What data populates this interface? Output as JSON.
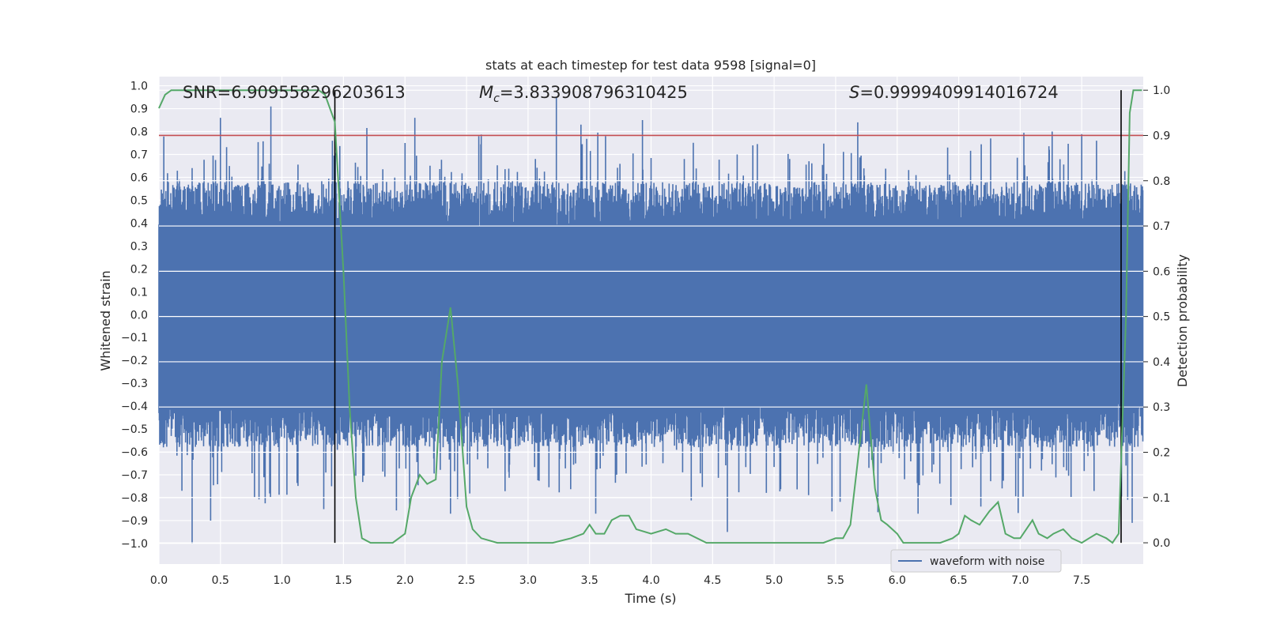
{
  "chart_data": {
    "type": "line",
    "title": "stats at each timestep for test data 9598 [signal=0]",
    "xlabel": "Time (s)",
    "ylabel_left": "Whitened strain",
    "ylabel_right": "Detection probability",
    "xlim": [
      0.0,
      8.0
    ],
    "ylim_left": [
      -1.09,
      1.04
    ],
    "ylim_right": [
      -0.047,
      1.03
    ],
    "x_ticks": [
      "0.0",
      "0.5",
      "1.0",
      "1.5",
      "2.0",
      "2.5",
      "3.0",
      "3.5",
      "4.0",
      "4.5",
      "5.0",
      "5.5",
      "6.0",
      "6.5",
      "7.0",
      "7.5"
    ],
    "y_ticks_left": [
      "1.0",
      "0.9",
      "0.8",
      "0.7",
      "0.6",
      "0.5",
      "0.4",
      "0.3",
      "0.2",
      "0.1",
      "0.0",
      "-0.1",
      "-0.2",
      "-0.3",
      "-0.4",
      "-0.5",
      "-0.6",
      "-0.7",
      "-0.8",
      "-0.9",
      "-1.0"
    ],
    "y_ticks_right": [
      "1.0",
      "0.9",
      "0.8",
      "0.7",
      "0.6",
      "0.5",
      "0.4",
      "0.3",
      "0.2",
      "0.1",
      "0.0"
    ],
    "stats": {
      "snr": "SNR=6.909558296203613",
      "mc_symbol": "M",
      "mc_sub": "c",
      "mc_value": "=3.833908796310425",
      "s_symbol": "S",
      "s_value": "=0.9999409914016724"
    },
    "threshold_line": {
      "y_right": 0.9,
      "color": "#c44e52"
    },
    "vertical_lines": [
      1.43,
      7.82
    ],
    "waveform": {
      "name": "waveform with noise",
      "color": "#4c72b0",
      "envelope_pos": 0.38,
      "envelope_neg": -0.38,
      "peaks_pos": [
        [
          0.27,
          0.61
        ],
        [
          0.5,
          0.86
        ],
        [
          0.91,
          0.91
        ],
        [
          1.41,
          0.76
        ],
        [
          2.0,
          0.75
        ],
        [
          2.08,
          0.86
        ],
        [
          2.6,
          0.78
        ],
        [
          3.23,
          0.95
        ],
        [
          3.43,
          0.83
        ],
        [
          3.93,
          0.85
        ],
        [
          4.7,
          0.7
        ],
        [
          5.68,
          0.84
        ],
        [
          6.76,
          0.77
        ],
        [
          7.26,
          0.8
        ],
        [
          7.62,
          0.76
        ]
      ],
      "peaks_neg": [
        [
          0.27,
          -1.0
        ],
        [
          0.42,
          -0.9
        ],
        [
          1.34,
          -0.85
        ],
        [
          2.37,
          -0.87
        ],
        [
          3.55,
          -0.87
        ],
        [
          4.62,
          -0.95
        ],
        [
          5.47,
          -0.86
        ],
        [
          6.17,
          -0.87
        ],
        [
          7.91,
          -0.91
        ]
      ]
    },
    "detection_probability": {
      "color": "#55a868",
      "x": [
        0.0,
        0.05,
        0.1,
        0.3,
        0.5,
        0.7,
        0.9,
        1.1,
        1.3,
        1.35,
        1.43,
        1.5,
        1.55,
        1.6,
        1.65,
        1.72,
        1.8,
        1.9,
        2.0,
        2.05,
        2.12,
        2.18,
        2.25,
        2.3,
        2.37,
        2.43,
        2.5,
        2.55,
        2.62,
        2.75,
        2.9,
        3.0,
        3.2,
        3.35,
        3.45,
        3.5,
        3.55,
        3.62,
        3.68,
        3.75,
        3.82,
        3.88,
        4.0,
        4.12,
        4.2,
        4.3,
        4.45,
        4.6,
        4.8,
        5.0,
        5.2,
        5.4,
        5.5,
        5.56,
        5.62,
        5.68,
        5.75,
        5.82,
        5.87,
        5.92,
        6.0,
        6.05,
        6.1,
        6.2,
        6.35,
        6.45,
        6.5,
        6.55,
        6.6,
        6.67,
        6.75,
        6.82,
        6.88,
        6.95,
        7.0,
        7.1,
        7.15,
        7.22,
        7.27,
        7.35,
        7.42,
        7.5,
        7.56,
        7.62,
        7.7,
        7.75,
        7.8,
        7.86,
        7.89,
        7.92,
        7.95,
        7.99
      ],
      "y": [
        0.96,
        0.99,
        1.0,
        1.0,
        1.0,
        1.0,
        1.0,
        1.0,
        1.0,
        0.99,
        0.93,
        0.6,
        0.3,
        0.1,
        0.01,
        0.0,
        0.0,
        0.0,
        0.02,
        0.1,
        0.15,
        0.13,
        0.14,
        0.4,
        0.52,
        0.35,
        0.08,
        0.03,
        0.01,
        0.0,
        0.0,
        0.0,
        0.0,
        0.01,
        0.02,
        0.04,
        0.02,
        0.02,
        0.05,
        0.06,
        0.06,
        0.03,
        0.02,
        0.03,
        0.02,
        0.02,
        0.0,
        0.0,
        0.0,
        0.0,
        0.0,
        0.0,
        0.01,
        0.01,
        0.04,
        0.18,
        0.35,
        0.12,
        0.05,
        0.04,
        0.02,
        0.0,
        0.0,
        0.0,
        0.0,
        0.01,
        0.02,
        0.06,
        0.05,
        0.04,
        0.07,
        0.09,
        0.02,
        0.01,
        0.01,
        0.05,
        0.02,
        0.01,
        0.02,
        0.03,
        0.01,
        0.0,
        0.01,
        0.02,
        0.01,
        0.0,
        0.02,
        0.5,
        0.95,
        1.0,
        1.0,
        1.0
      ]
    },
    "legend": {
      "entries": [
        "waveform with noise"
      ],
      "location": "lower-right"
    }
  }
}
